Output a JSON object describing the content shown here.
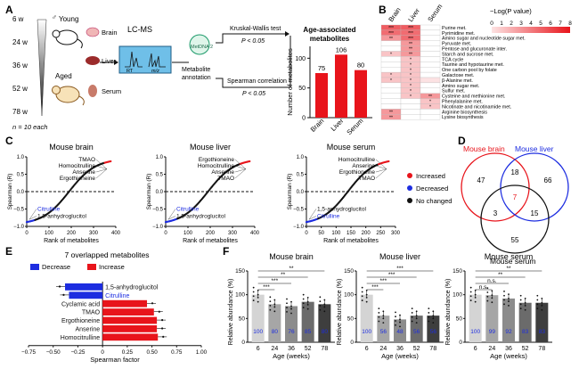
{
  "panelA": {
    "label": "A",
    "weeks": [
      "6 w",
      "24 w",
      "36 w",
      "52 w",
      "78 w"
    ],
    "n_note": "n = 10 each",
    "young": "Young",
    "aged": "Aged",
    "male_symbol": "♂",
    "tissues": [
      "Brain",
      "Liver",
      "Serum"
    ],
    "lcms": "LC-MS",
    "rt": "RT",
    "mz": "m/z",
    "mzmine": "MetDNA 2",
    "annotation": "Metabolite annotation",
    "test1": "Kruskal-Wallis test",
    "p1": "P < 0.05",
    "test2": "Spearman correlation",
    "p2": "P < 0.05",
    "chart_data": {
      "type": "bar",
      "title": "Age-associated metabolites",
      "ylabel": "Number of metabolites",
      "categories": [
        "Brain",
        "Liver",
        "Serum"
      ],
      "values": [
        75,
        106,
        80
      ],
      "ylim": [
        0,
        120
      ],
      "bar_color": "#e8141b"
    }
  },
  "panelB": {
    "label": "B",
    "legend_title": "−Log(P value)",
    "legend_ticks": [
      "0",
      "1",
      "2",
      "3",
      "4",
      "5",
      "6",
      "7",
      "8"
    ],
    "columns": [
      "Brain",
      "Liver",
      "Serum"
    ],
    "chart_data": {
      "type": "heatmap",
      "columns": [
        "Brain",
        "Liver",
        "Serum"
      ],
      "rows": [
        {
          "name": "Purine met.",
          "stars": [
            "***",
            "***",
            ""
          ],
          "values": [
            5.5,
            5.5,
            0
          ]
        },
        {
          "name": "Pyrimidine met.",
          "stars": [
            "***",
            "***",
            ""
          ],
          "values": [
            5.0,
            5.0,
            0
          ]
        },
        {
          "name": "Amino sugar and nucleotide sugar met.",
          "stars": [
            "**",
            "***",
            ""
          ],
          "values": [
            3.5,
            5.0,
            0
          ]
        },
        {
          "name": "Pyruvate met.",
          "stars": [
            "",
            "**",
            ""
          ],
          "values": [
            0,
            3.5,
            0
          ]
        },
        {
          "name": "Pentose and glucuronate inter.",
          "stars": [
            "",
            "**",
            ""
          ],
          "values": [
            0,
            3.5,
            0
          ]
        },
        {
          "name": "Starch and sucrose met.",
          "stars": [
            "*",
            "**",
            ""
          ],
          "values": [
            2,
            3.5,
            0
          ]
        },
        {
          "name": "TCA cycle",
          "stars": [
            "",
            "*",
            ""
          ],
          "values": [
            0,
            2,
            0
          ]
        },
        {
          "name": "Taurine and hypotaurine met.",
          "stars": [
            "",
            "*",
            ""
          ],
          "values": [
            0,
            2,
            0
          ]
        },
        {
          "name": "One carbon pool by folate",
          "stars": [
            "",
            "*",
            ""
          ],
          "values": [
            0,
            2,
            0
          ]
        },
        {
          "name": "Galactose met.",
          "stars": [
            "*",
            "*",
            ""
          ],
          "values": [
            2,
            2,
            0
          ]
        },
        {
          "name": "β-Alanine met.",
          "stars": [
            "*",
            "*",
            ""
          ],
          "values": [
            2,
            2,
            1
          ]
        },
        {
          "name": "Amino sugar met.",
          "stars": [
            "",
            "*",
            ""
          ],
          "values": [
            0,
            2,
            0
          ]
        },
        {
          "name": "Sulfur met.",
          "stars": [
            "",
            "*",
            ""
          ],
          "values": [
            0,
            2,
            0
          ]
        },
        {
          "name": "Cysteine and methionine met.",
          "stars": [
            "",
            "*",
            "**"
          ],
          "values": [
            0,
            2,
            3.5
          ]
        },
        {
          "name": "Phenylalanine met.",
          "stars": [
            "",
            "",
            "*"
          ],
          "values": [
            0,
            0,
            2
          ]
        },
        {
          "name": "Nicotinate and nicotinamide met.",
          "stars": [
            "",
            "",
            "*"
          ],
          "values": [
            0,
            0,
            2
          ]
        },
        {
          "name": "Arginine biosynthesis",
          "stars": [
            "**",
            "",
            ""
          ],
          "values": [
            3.5,
            0,
            0
          ]
        },
        {
          "name": "Lysine biosynthesis",
          "stars": [
            "**",
            "",
            ""
          ],
          "values": [
            3.5,
            0,
            0
          ]
        }
      ],
      "scale_max": 8,
      "colors": [
        "#ffffff",
        "#e8141b"
      ]
    }
  },
  "panelC": {
    "label": "C",
    "ylabel": "Spearman (R)",
    "xlabel": "Rank of metabolites",
    "legend": [
      "Increased",
      "Decreased",
      "No changed"
    ],
    "legend_colors": [
      "#e8141b",
      "#1d2de0",
      "#111111"
    ],
    "chart_data": [
      {
        "type": "scatter",
        "title": "Mouse brain",
        "xlim": [
          0,
          400
        ],
        "xticks": [
          "0",
          "100",
          "200",
          "300",
          "400"
        ],
        "ylim": [
          -1.0,
          1.0
        ],
        "yticks": [
          "−1.0",
          "−0.5",
          "0.0",
          "0.5",
          "1.0"
        ],
        "n": 400,
        "n_dec": 40,
        "n_inc": 35,
        "labels_top": [
          "TMAO",
          "Homocitrulline",
          "Anserine",
          "Ergothioneine"
        ],
        "labels_bottom": [
          "Citrulline",
          "1,5-anhydroglucitol"
        ]
      },
      {
        "type": "scatter",
        "title": "Mouse liver",
        "xlim": [
          0,
          400
        ],
        "xticks": [
          "0",
          "100",
          "200",
          "300",
          "400"
        ],
        "ylim": [
          -1.0,
          1.0
        ],
        "yticks": [
          "−1.0",
          "−0.5",
          "0.0",
          "0.5",
          "1.0"
        ],
        "n": 400,
        "n_dec": 55,
        "n_inc": 50,
        "labels_top": [
          "Ergothioneine",
          "Homocitrulline",
          "Anserine",
          "TMAO"
        ],
        "labels_bottom": [
          "Citrulline",
          "1,5-anhydroglucitol"
        ]
      },
      {
        "type": "scatter",
        "title": "Mouse serum",
        "xlim": [
          0,
          300
        ],
        "xticks": [
          "0",
          "50",
          "100",
          "150",
          "200",
          "250",
          "300"
        ],
        "ylim": [
          -1.0,
          1.0
        ],
        "yticks": [
          "−1.0",
          "−0.5",
          "0.0",
          "0.5",
          "1.0"
        ],
        "n": 300,
        "n_dec": 40,
        "n_inc": 40,
        "labels_top": [
          "Homocitrulline",
          "Anserine",
          "Ergothioneine",
          "TMAO"
        ],
        "labels_bottom": [
          "1,5-anhydroglucitol",
          "Citrulline"
        ]
      }
    ]
  },
  "panelD": {
    "label": "D",
    "sets": [
      "Mouse brain",
      "Mouse liver",
      "Mouse serum"
    ],
    "set_colors": [
      "#e8141b",
      "#1d2de0",
      "#111111"
    ],
    "regions": {
      "brain_only": "47",
      "liver_only": "66",
      "serum_only": "55",
      "brain_liver": "18",
      "brain_serum": "3",
      "liver_serum": "15",
      "all": "7"
    }
  },
  "panelE": {
    "label": "E",
    "title": "7 overlapped metabolites",
    "legend": [
      "Decrease",
      "Increase"
    ],
    "xlabel": "Spearman factor",
    "chart_data": {
      "type": "bar",
      "orientation": "horizontal",
      "categories": [
        "1,5-anhydroglucitol",
        "Citrulline",
        "Cyclamic acid",
        "TMAO",
        "Ergothioneine",
        "Anserine",
        "Homocitrulline"
      ],
      "values": [
        -0.38,
        -0.34,
        0.45,
        0.52,
        0.55,
        0.55,
        0.56
      ],
      "xlim": [
        -0.75,
        1.0
      ],
      "xticks": [
        "−0.75",
        "−0.50",
        "−0.25",
        "0",
        "0.25",
        "0.50",
        "0.75",
        "1.00"
      ]
    }
  },
  "panelF": {
    "label": "F",
    "ylabel": "Relative abundance (%)",
    "xlabel": "Age (weeks)",
    "chart_data": [
      {
        "type": "bar",
        "title": "Mouse brain",
        "categories": [
          "6",
          "24",
          "36",
          "52",
          "78"
        ],
        "values": [
          100,
          80,
          76,
          85,
          80
        ],
        "value_labels": [
          "100",
          "80",
          "76",
          "85",
          "80"
        ],
        "ylim": [
          0,
          150
        ],
        "yticks": [
          "0",
          "50",
          "100",
          "150"
        ],
        "sig": [
          "**",
          "**",
          "***",
          "***"
        ]
      },
      {
        "type": "bar",
        "title": "Mouse liver",
        "categories": [
          "6",
          "24",
          "36",
          "52",
          "78"
        ],
        "values": [
          100,
          56,
          48,
          56,
          56
        ],
        "value_labels": [
          "100",
          "56",
          "48",
          "56",
          "56"
        ],
        "ylim": [
          0,
          150
        ],
        "yticks": [
          "0",
          "50",
          "100",
          "150"
        ],
        "sig": [
          "***",
          "***",
          "***",
          "***"
        ]
      },
      {
        "type": "bar",
        "title": "Mouse serum",
        "categories": [
          "6",
          "24",
          "36",
          "52",
          "78"
        ],
        "values": [
          100,
          99,
          92,
          83,
          83
        ],
        "value_labels": [
          "100",
          "99",
          "92",
          "83",
          "83"
        ],
        "ylim": [
          0,
          150
        ],
        "yticks": [
          "0",
          "50",
          "100",
          "150"
        ],
        "sig": [
          "**",
          "**",
          "n.s.",
          "n.s."
        ]
      }
    ],
    "bar_colors": [
      "#d4d4d4",
      "#a6a6a6",
      "#8c8c8c",
      "#6b6b6b",
      "#3e3e3e"
    ]
  }
}
